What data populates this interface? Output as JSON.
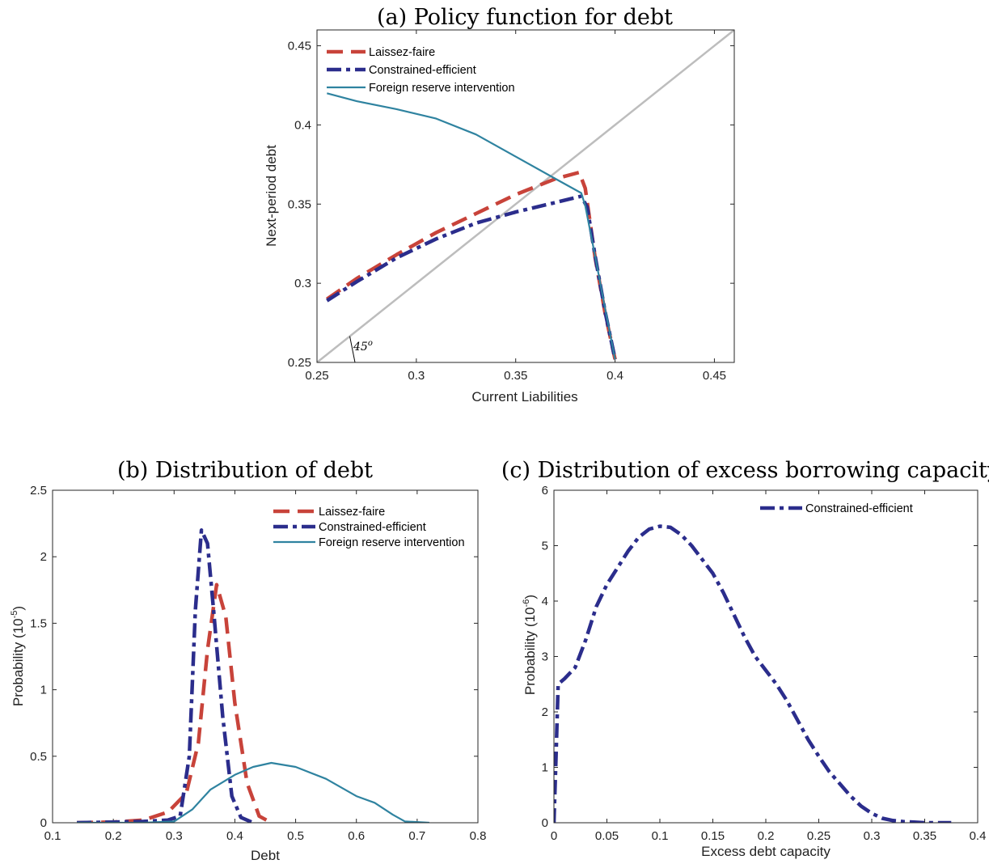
{
  "colors": {
    "laissez_faire": "#c8433a",
    "constrained_efficient": "#2b2d8c",
    "foreign_reserve": "#2f83a0",
    "diagonal": "#bdbdbd"
  },
  "chart_data": [
    {
      "type": "line",
      "title": "(a) Policy function for debt",
      "xlabel": "Current Liabilities",
      "ylabel": "Next-period debt",
      "xlim": [
        0.25,
        0.46
      ],
      "ylim": [
        0.25,
        0.46
      ],
      "xticks": [
        "0.25",
        "0.3",
        "0.35",
        "0.4",
        "0.45"
      ],
      "yticks": [
        "0.25",
        "0.3",
        "0.35",
        "0.4",
        "0.45"
      ],
      "legend_position": "top-left",
      "annotation": {
        "text": "45",
        "sup": "o"
      },
      "reference_line": {
        "name": "45-degree line",
        "x": [
          0.25,
          0.46
        ],
        "y": [
          0.25,
          0.46
        ]
      },
      "series": [
        {
          "name": "Laissez-faire",
          "style": "dashed",
          "x": [
            0.255,
            0.27,
            0.29,
            0.31,
            0.33,
            0.35,
            0.37,
            0.382,
            0.385,
            0.39,
            0.395,
            0.4
          ],
          "y": [
            0.29,
            0.303,
            0.318,
            0.332,
            0.344,
            0.356,
            0.366,
            0.37,
            0.36,
            0.316,
            0.281,
            0.252
          ]
        },
        {
          "name": "Constrained-efficient",
          "style": "dash-dot",
          "x": [
            0.255,
            0.27,
            0.29,
            0.31,
            0.33,
            0.35,
            0.37,
            0.383,
            0.386,
            0.39,
            0.395,
            0.4
          ],
          "y": [
            0.289,
            0.301,
            0.316,
            0.328,
            0.338,
            0.345,
            0.351,
            0.355,
            0.348,
            0.317,
            0.282,
            0.252
          ]
        },
        {
          "name": "Foreign reserve intervention",
          "style": "solid",
          "x": [
            0.255,
            0.27,
            0.29,
            0.31,
            0.33,
            0.35,
            0.37,
            0.383,
            0.385,
            0.39,
            0.395,
            0.4
          ],
          "y": [
            0.42,
            0.415,
            0.41,
            0.404,
            0.394,
            0.38,
            0.366,
            0.357,
            0.349,
            0.317,
            0.284,
            0.252
          ]
        }
      ]
    },
    {
      "type": "line",
      "title": "(b) Distribution of debt",
      "xlabel": "Debt",
      "ylabel": "Probability (10",
      "ylabel_sup": "-5",
      "ylabel_end": ")",
      "xlim": [
        0.1,
        0.8
      ],
      "ylim": [
        0,
        2.5
      ],
      "xticks": [
        "0.1",
        "0.2",
        "0.3",
        "0.4",
        "0.5",
        "0.6",
        "0.7",
        "0.8"
      ],
      "yticks": [
        "0",
        "0.5",
        "1",
        "1.5",
        "2",
        "2.5"
      ],
      "legend_position": "top-right",
      "series": [
        {
          "name": "Laissez-faire",
          "style": "dashed",
          "x": [
            0.14,
            0.2,
            0.25,
            0.29,
            0.32,
            0.34,
            0.355,
            0.37,
            0.385,
            0.4,
            0.42,
            0.44,
            0.46
          ],
          "y": [
            0,
            0.005,
            0.02,
            0.08,
            0.22,
            0.6,
            1.3,
            1.79,
            1.55,
            0.9,
            0.3,
            0.05,
            0
          ]
        },
        {
          "name": "Constrained-efficient",
          "style": "dash-dot",
          "x": [
            0.14,
            0.2,
            0.25,
            0.29,
            0.31,
            0.325,
            0.335,
            0.345,
            0.355,
            0.365,
            0.38,
            0.395,
            0.41,
            0.43
          ],
          "y": [
            0,
            0.005,
            0.01,
            0.02,
            0.05,
            0.5,
            1.6,
            2.2,
            2.1,
            1.6,
            0.8,
            0.2,
            0.04,
            0
          ]
        },
        {
          "name": "Foreign reserve intervention",
          "style": "solid",
          "x": [
            0.14,
            0.25,
            0.3,
            0.33,
            0.36,
            0.4,
            0.43,
            0.46,
            0.5,
            0.55,
            0.6,
            0.63,
            0.66,
            0.68,
            0.72
          ],
          "y": [
            0,
            0,
            0.01,
            0.1,
            0.25,
            0.36,
            0.42,
            0.45,
            0.42,
            0.33,
            0.2,
            0.15,
            0.06,
            0.01,
            0
          ]
        }
      ]
    },
    {
      "type": "line",
      "title": "(c) Distribution of excess borrowing capacity",
      "xlabel": "Excess debt capacity",
      "ylabel": "Probability (10",
      "ylabel_sup": "-6",
      "ylabel_end": ")",
      "xlim": [
        0,
        0.4
      ],
      "ylim": [
        0,
        6
      ],
      "xticks": [
        "0",
        "0.05",
        "0.1",
        "0.15",
        "0.2",
        "0.25",
        "0.3",
        "0.35",
        "0.4"
      ],
      "yticks": [
        "0",
        "1",
        "2",
        "3",
        "4",
        "5",
        "6"
      ],
      "legend_position": "top-right",
      "series": [
        {
          "name": "Constrained-efficient",
          "style": "dash-dot",
          "x": [
            0,
            0.002,
            0.004,
            0.01,
            0.02,
            0.03,
            0.04,
            0.05,
            0.06,
            0.07,
            0.08,
            0.09,
            0.1,
            0.11,
            0.12,
            0.13,
            0.14,
            0.15,
            0.16,
            0.17,
            0.18,
            0.19,
            0.2,
            0.21,
            0.22,
            0.23,
            0.24,
            0.25,
            0.26,
            0.27,
            0.28,
            0.29,
            0.3,
            0.31,
            0.32,
            0.33,
            0.34,
            0.35,
            0.36,
            0.375
          ],
          "y": [
            0,
            1.2,
            2.5,
            2.6,
            2.8,
            3.3,
            3.9,
            4.3,
            4.6,
            4.9,
            5.15,
            5.3,
            5.35,
            5.33,
            5.2,
            5.0,
            4.75,
            4.5,
            4.15,
            3.75,
            3.35,
            3.0,
            2.75,
            2.5,
            2.2,
            1.85,
            1.5,
            1.2,
            0.92,
            0.7,
            0.48,
            0.3,
            0.17,
            0.08,
            0.04,
            0.02,
            0.01,
            0,
            0,
            0
          ]
        }
      ]
    }
  ]
}
